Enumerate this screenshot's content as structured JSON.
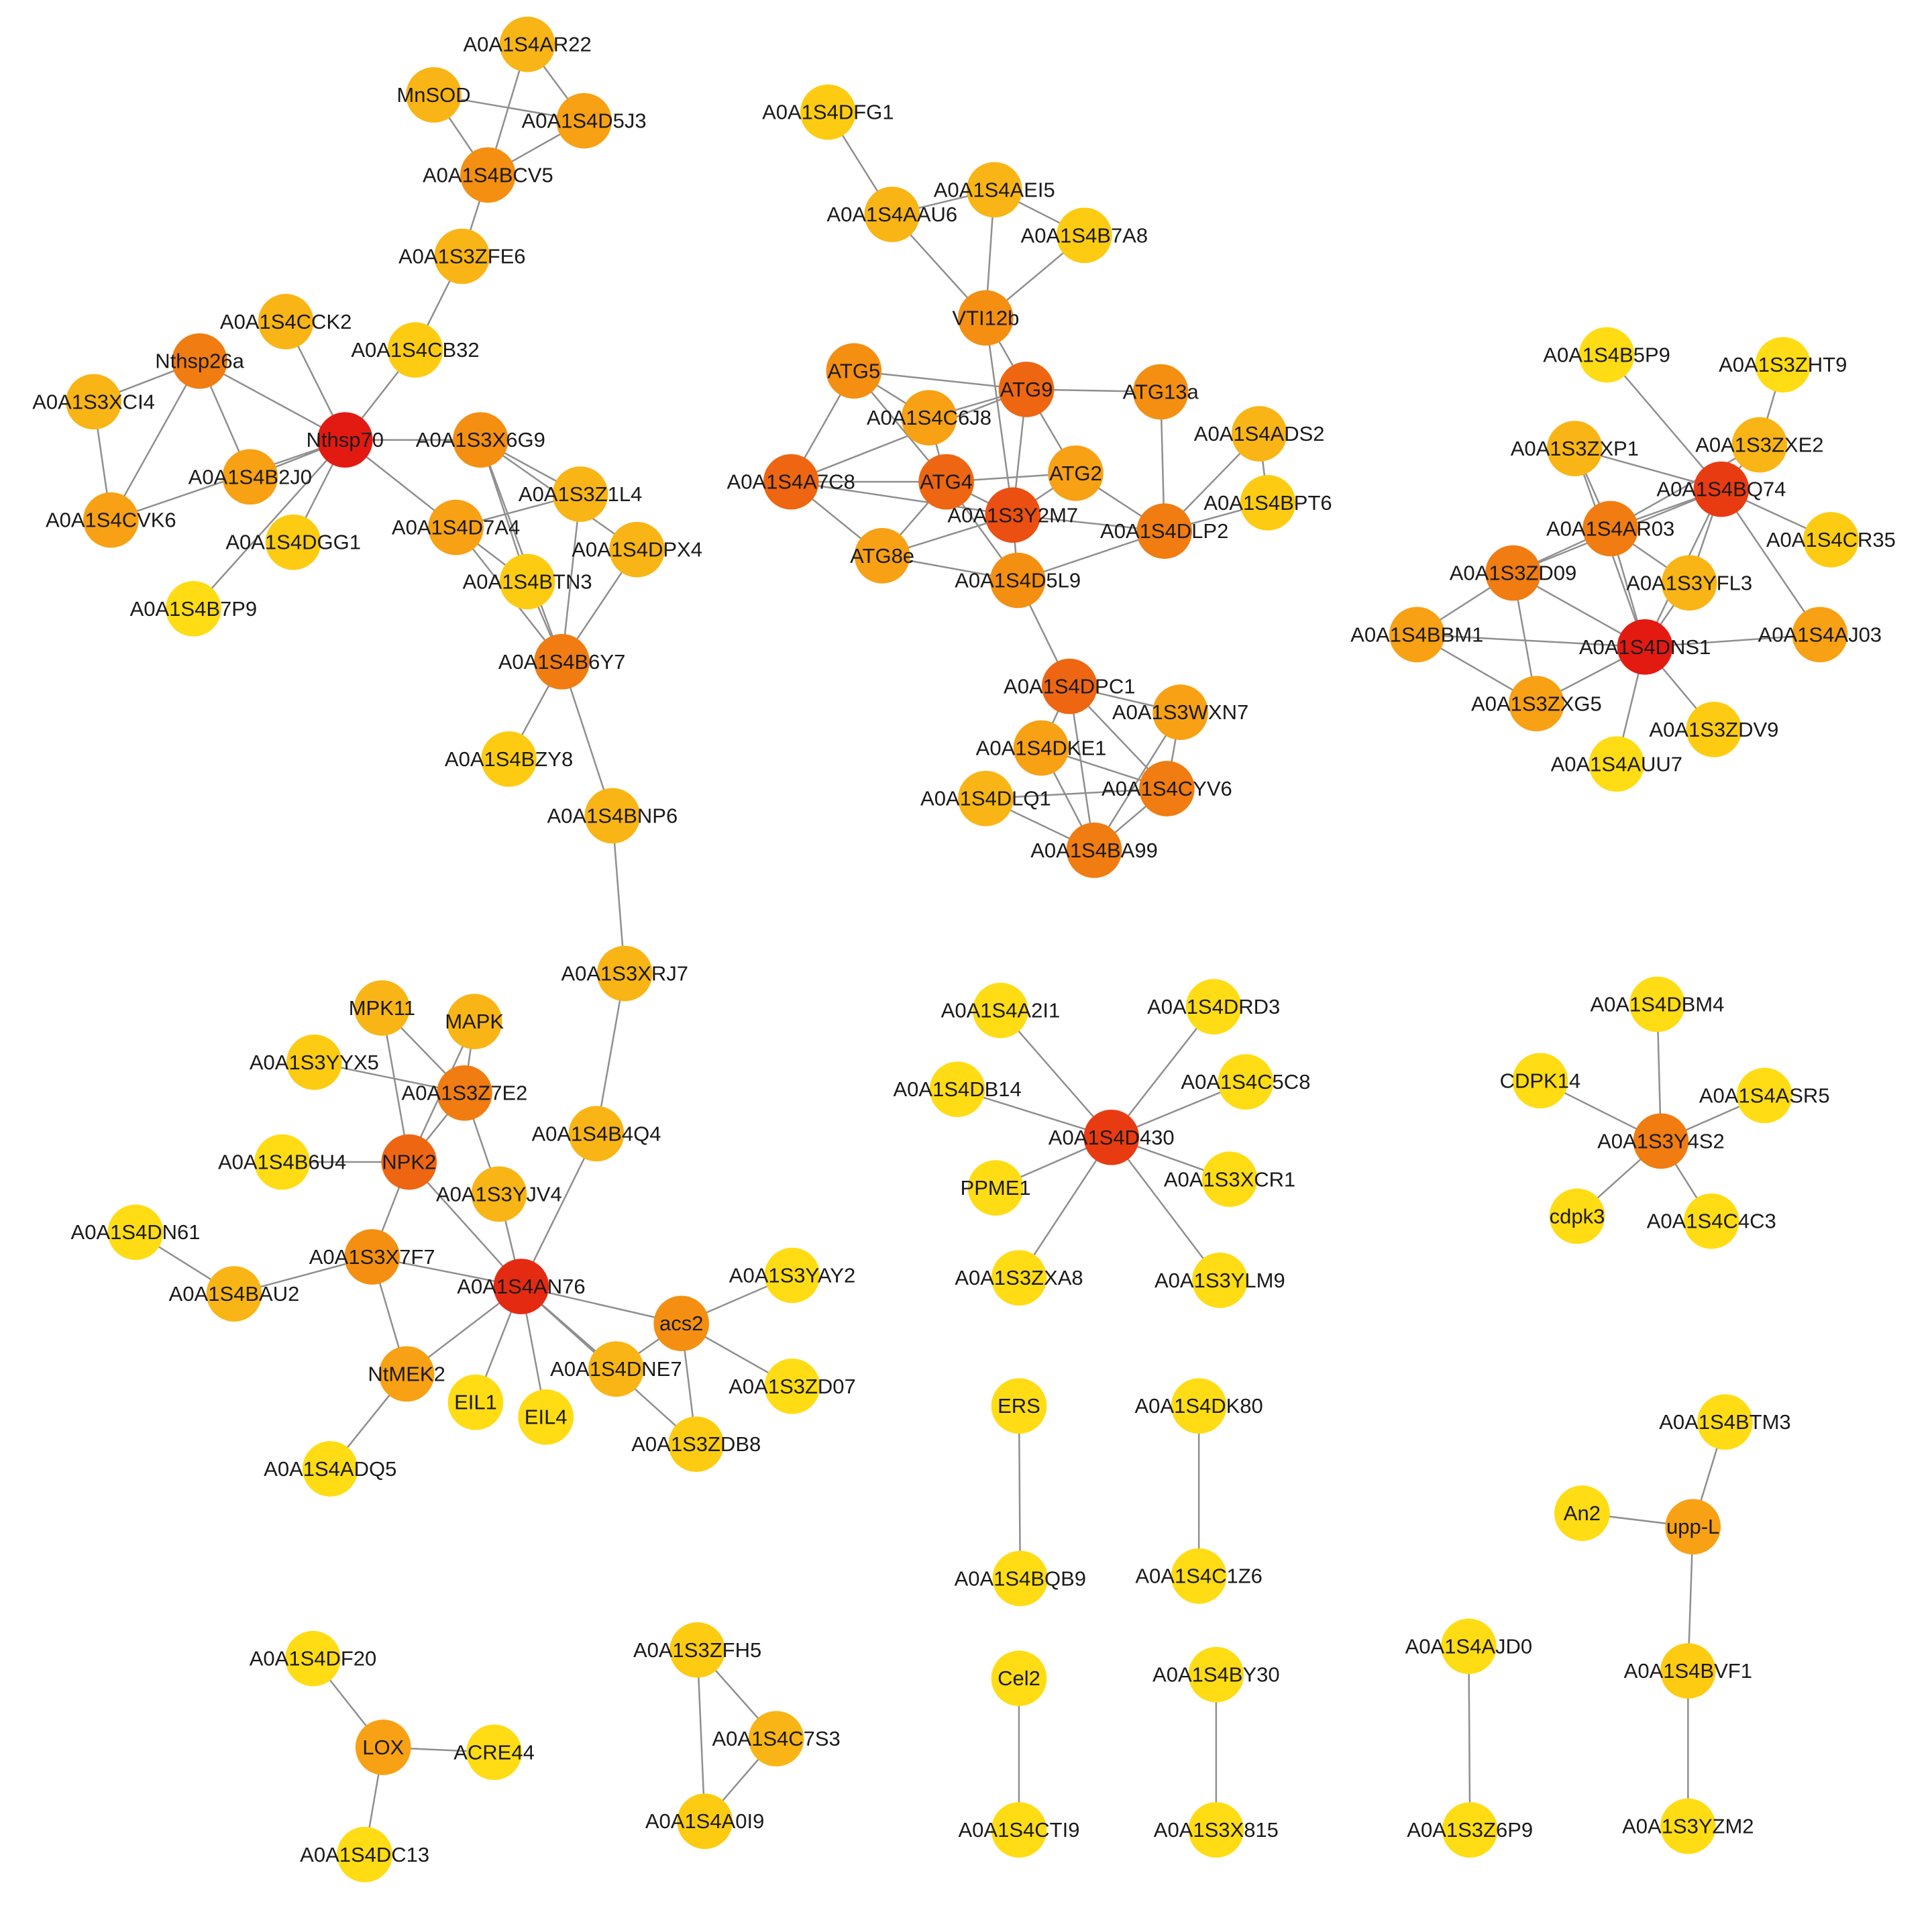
{
  "colors": {
    "background": "#ffffff",
    "edge": "#8f8f8f",
    "label": "#1a1a1a",
    "degree_scale": {
      "1": "#ffdc14",
      "2": "#fdcc12",
      "3": "#f9b515",
      "4": "#f8a114",
      "5": "#f48f12",
      "6": "#f07c12",
      "7": "#ee6612",
      "8": "#eb4f12",
      "9": "#e93b12",
      "10": "#e52a12",
      "11": "#e31a12"
    }
  },
  "nodes": [
    {
      "id": "A0A1S4AR22",
      "level": 3
    },
    {
      "id": "MnSOD",
      "level": 3
    },
    {
      "id": "A0A1S4D5J3",
      "level": 4
    },
    {
      "id": "A0A1S4BCV5",
      "level": 5
    },
    {
      "id": "A0A1S3ZFE6",
      "level": 3
    },
    {
      "id": "A0A1S4CCK2",
      "level": 3
    },
    {
      "id": "Nthsp26a",
      "level": 6
    },
    {
      "id": "A0A1S4CB32",
      "level": 2
    },
    {
      "id": "A0A1S3XCI4",
      "level": 3
    },
    {
      "id": "Nthsp70",
      "level": 11
    },
    {
      "id": "A0A1S3X6G9",
      "level": 5
    },
    {
      "id": "A0A1S4B2J0",
      "level": 4
    },
    {
      "id": "A0A1S3Z1L4",
      "level": 3
    },
    {
      "id": "A0A1S4CVK6",
      "level": 4
    },
    {
      "id": "A0A1S4D7A4",
      "level": 4
    },
    {
      "id": "A0A1S4DGG1",
      "level": 2
    },
    {
      "id": "A0A1S4DPX4",
      "level": 3
    },
    {
      "id": "A0A1S4BTN3",
      "level": 2
    },
    {
      "id": "A0A1S4B7P9",
      "level": 1
    },
    {
      "id": "A0A1S4B6Y7",
      "level": 6
    },
    {
      "id": "A0A1S4BZY8",
      "level": 2
    },
    {
      "id": "A0A1S4BNP6",
      "level": 3
    },
    {
      "id": "A0A1S3XRJ7",
      "level": 3
    },
    {
      "id": "A0A1S4DFG1",
      "level": 2
    },
    {
      "id": "A0A1S4AEI5",
      "level": 3
    },
    {
      "id": "A0A1S4AAU6",
      "level": 3
    },
    {
      "id": "A0A1S4B7A8",
      "level": 2
    },
    {
      "id": "VTI12b",
      "level": 5
    },
    {
      "id": "ATG5",
      "level": 5
    },
    {
      "id": "ATG9",
      "level": 7
    },
    {
      "id": "ATG13a",
      "level": 5
    },
    {
      "id": "A0A1S4C6J8",
      "level": 4
    },
    {
      "id": "A0A1S4ADS2",
      "level": 3
    },
    {
      "id": "A0A1S4A7C8",
      "level": 7
    },
    {
      "id": "ATG4",
      "level": 7
    },
    {
      "id": "ATG2",
      "level": 4
    },
    {
      "id": "A0A1S3Y2M7",
      "level": 8
    },
    {
      "id": "A0A1S4BPT6",
      "level": 2
    },
    {
      "id": "A0A1S4DLP2",
      "level": 6
    },
    {
      "id": "ATG8e",
      "level": 4
    },
    {
      "id": "A0A1S4D5L9",
      "level": 5
    },
    {
      "id": "A0A1S4DPC1",
      "level": 7
    },
    {
      "id": "A0A1S3WXN7",
      "level": 4
    },
    {
      "id": "A0A1S4DKE1",
      "level": 4
    },
    {
      "id": "A0A1S4CYV6",
      "level": 6
    },
    {
      "id": "A0A1S4DLQ1",
      "level": 3
    },
    {
      "id": "A0A1S4BA99",
      "level": 6
    },
    {
      "id": "A0A1S4B5P9",
      "level": 1
    },
    {
      "id": "A0A1S3ZHT9",
      "level": 1
    },
    {
      "id": "A0A1S3ZXP1",
      "level": 3
    },
    {
      "id": "A0A1S3ZXE2",
      "level": 3
    },
    {
      "id": "A0A1S4BQ74",
      "level": 9
    },
    {
      "id": "A0A1S4AR03",
      "level": 6
    },
    {
      "id": "A0A1S4CR35",
      "level": 2
    },
    {
      "id": "A0A1S3ZD09",
      "level": 6
    },
    {
      "id": "A0A1S3YFL3",
      "level": 3
    },
    {
      "id": "A0A1S4BBM1",
      "level": 4
    },
    {
      "id": "A0A1S4DNS1",
      "level": 11
    },
    {
      "id": "A0A1S4AJ03",
      "level": 4
    },
    {
      "id": "A0A1S3ZXG5",
      "level": 4
    },
    {
      "id": "A0A1S3ZDV9",
      "level": 2
    },
    {
      "id": "A0A1S4AUU7",
      "level": 1
    },
    {
      "id": "MPK11",
      "level": 3
    },
    {
      "id": "MAPK",
      "level": 3
    },
    {
      "id": "A0A1S3YYX5",
      "level": 2
    },
    {
      "id": "A0A1S3Z7E2",
      "level": 6
    },
    {
      "id": "A0A1S4B4Q4",
      "level": 3
    },
    {
      "id": "A0A1S4B6U4",
      "level": 1
    },
    {
      "id": "NPK2",
      "level": 7
    },
    {
      "id": "A0A1S3YJV4",
      "level": 3
    },
    {
      "id": "A0A1S4DN61",
      "level": 1
    },
    {
      "id": "A0A1S3X7F7",
      "level": 5
    },
    {
      "id": "A0A1S4AN76",
      "level": 10
    },
    {
      "id": "A0A1S4BAU2",
      "level": 3
    },
    {
      "id": "A0A1S3YAY2",
      "level": 1
    },
    {
      "id": "acs2",
      "level": 5
    },
    {
      "id": "NtMEK2",
      "level": 4
    },
    {
      "id": "A0A1S4DNE7",
      "level": 3
    },
    {
      "id": "EIL1",
      "level": 1
    },
    {
      "id": "EIL4",
      "level": 1
    },
    {
      "id": "A0A1S3ZD07",
      "level": 1
    },
    {
      "id": "A0A1S3ZDB8",
      "level": 2
    },
    {
      "id": "A0A1S4ADQ5",
      "level": 1
    },
    {
      "id": "A0A1S4A2I1",
      "level": 1
    },
    {
      "id": "A0A1S4DRD3",
      "level": 1
    },
    {
      "id": "A0A1S4DB14",
      "level": 1
    },
    {
      "id": "A0A1S4C5C8",
      "level": 1
    },
    {
      "id": "A0A1S4D430",
      "level": 9
    },
    {
      "id": "PPME1",
      "level": 1
    },
    {
      "id": "A0A1S3XCR1",
      "level": 1
    },
    {
      "id": "A0A1S3ZXA8",
      "level": 1
    },
    {
      "id": "A0A1S3YLM9",
      "level": 1
    },
    {
      "id": "A0A1S4DBM4",
      "level": 1
    },
    {
      "id": "CDPK14",
      "level": 1
    },
    {
      "id": "A0A1S4ASR5",
      "level": 1
    },
    {
      "id": "A0A1S3Y4S2",
      "level": 6
    },
    {
      "id": "cdpk3",
      "level": 1
    },
    {
      "id": "A0A1S4C4C3",
      "level": 1
    },
    {
      "id": "ERS",
      "level": 1
    },
    {
      "id": "A0A1S4DK80",
      "level": 1
    },
    {
      "id": "A0A1S4BQB9",
      "level": 1
    },
    {
      "id": "A0A1S4C1Z6",
      "level": 1
    },
    {
      "id": "A0A1S4BTM3",
      "level": 1
    },
    {
      "id": "An2",
      "level": 1
    },
    {
      "id": "upp-L",
      "level": 4
    },
    {
      "id": "A0A1S4BVF1",
      "level": 2
    },
    {
      "id": "A0A1S3YZM2",
      "level": 1
    },
    {
      "id": "A0A1S4DF20",
      "level": 1
    },
    {
      "id": "LOX",
      "level": 4
    },
    {
      "id": "ACRE44",
      "level": 1
    },
    {
      "id": "A0A1S4DC13",
      "level": 1
    },
    {
      "id": "A0A1S3ZFH5",
      "level": 2
    },
    {
      "id": "A0A1S4C7S3",
      "level": 3
    },
    {
      "id": "A0A1S4A0I9",
      "level": 2
    },
    {
      "id": "Cel2",
      "level": 1
    },
    {
      "id": "A0A1S4BY30",
      "level": 1
    },
    {
      "id": "A0A1S4AJD0",
      "level": 1
    },
    {
      "id": "A0A1S4CTI9",
      "level": 1
    },
    {
      "id": "A0A1S3X815",
      "level": 1
    },
    {
      "id": "A0A1S3Z6P9",
      "level": 1
    }
  ],
  "edges": [
    [
      "A0A1S4AR22",
      "A0A1S4D5J3"
    ],
    [
      "A0A1S4AR22",
      "A0A1S4BCV5"
    ],
    [
      "MnSOD",
      "A0A1S4D5J3"
    ],
    [
      "MnSOD",
      "A0A1S4BCV5"
    ],
    [
      "A0A1S4D5J3",
      "A0A1S4BCV5"
    ],
    [
      "A0A1S4BCV5",
      "A0A1S3ZFE6"
    ],
    [
      "A0A1S3ZFE6",
      "A0A1S4CB32"
    ],
    [
      "A0A1S4CB32",
      "Nthsp70"
    ],
    [
      "A0A1S4CCK2",
      "Nthsp70"
    ],
    [
      "Nthsp26a",
      "Nthsp70"
    ],
    [
      "Nthsp26a",
      "A0A1S3XCI4"
    ],
    [
      "Nthsp26a",
      "A0A1S4CVK6"
    ],
    [
      "Nthsp26a",
      "A0A1S4B2J0"
    ],
    [
      "A0A1S3XCI4",
      "A0A1S4CVK6"
    ],
    [
      "A0A1S4CVK6",
      "Nthsp70"
    ],
    [
      "A0A1S4B2J0",
      "Nthsp70"
    ],
    [
      "A0A1S4DGG1",
      "Nthsp70"
    ],
    [
      "A0A1S4B7P9",
      "Nthsp70"
    ],
    [
      "Nthsp70",
      "A0A1S3X6G9"
    ],
    [
      "Nthsp70",
      "A0A1S4D7A4"
    ],
    [
      "A0A1S3X6G9",
      "A0A1S3Z1L4"
    ],
    [
      "A0A1S3X6G9",
      "A0A1S4DPX4"
    ],
    [
      "A0A1S3X6G9",
      "A0A1S4BTN3"
    ],
    [
      "A0A1S3X6G9",
      "A0A1S4B6Y7"
    ],
    [
      "A0A1S4D7A4",
      "A0A1S4BTN3"
    ],
    [
      "A0A1S4D7A4",
      "A0A1S4B6Y7"
    ],
    [
      "A0A1S4D7A4",
      "A0A1S3Z1L4"
    ],
    [
      "A0A1S3Z1L4",
      "A0A1S4B6Y7"
    ],
    [
      "A0A1S4DPX4",
      "A0A1S4B6Y7"
    ],
    [
      "A0A1S4BTN3",
      "A0A1S4B6Y7"
    ],
    [
      "A0A1S4B6Y7",
      "A0A1S4BZY8"
    ],
    [
      "A0A1S4B6Y7",
      "A0A1S4BNP6"
    ],
    [
      "A0A1S4BNP6",
      "A0A1S3XRJ7"
    ],
    [
      "A0A1S3XRJ7",
      "A0A1S4B4Q4"
    ],
    [
      "A0A1S4B4Q4",
      "A0A1S4AN76"
    ],
    [
      "A0A1S4DFG1",
      "A0A1S4AAU6"
    ],
    [
      "A0A1S4AAU6",
      "A0A1S4AEI5"
    ],
    [
      "A0A1S4AAU6",
      "VTI12b"
    ],
    [
      "A0A1S4AEI5",
      "A0A1S4B7A8"
    ],
    [
      "A0A1S4AEI5",
      "VTI12b"
    ],
    [
      "A0A1S4B7A8",
      "VTI12b"
    ],
    [
      "VTI12b",
      "ATG9"
    ],
    [
      "VTI12b",
      "A0A1S3Y2M7"
    ],
    [
      "ATG5",
      "ATG9"
    ],
    [
      "ATG5",
      "A0A1S4C6J8"
    ],
    [
      "ATG5",
      "A0A1S4A7C8"
    ],
    [
      "ATG5",
      "ATG4"
    ],
    [
      "ATG9",
      "A0A1S4C6J8"
    ],
    [
      "ATG9",
      "ATG13a"
    ],
    [
      "ATG9",
      "A0A1S3Y2M7"
    ],
    [
      "ATG9",
      "ATG2"
    ],
    [
      "ATG9",
      "A0A1S4A7C8"
    ],
    [
      "A0A1S4C6J8",
      "ATG4"
    ],
    [
      "A0A1S4A7C8",
      "ATG4"
    ],
    [
      "A0A1S4A7C8",
      "A0A1S3Y2M7"
    ],
    [
      "A0A1S4A7C8",
      "ATG8e"
    ],
    [
      "ATG4",
      "A0A1S3Y2M7"
    ],
    [
      "ATG4",
      "ATG2"
    ],
    [
      "ATG4",
      "ATG8e"
    ],
    [
      "ATG4",
      "A0A1S4D5L9"
    ],
    [
      "ATG2",
      "A0A1S3Y2M7"
    ],
    [
      "ATG2",
      "A0A1S4DLP2"
    ],
    [
      "A0A1S3Y2M7",
      "A0A1S4D5L9"
    ],
    [
      "A0A1S3Y2M7",
      "ATG8e"
    ],
    [
      "A0A1S3Y2M7",
      "A0A1S4DLP2"
    ],
    [
      "ATG13a",
      "A0A1S4DLP2"
    ],
    [
      "A0A1S4ADS2",
      "A0A1S4DLP2"
    ],
    [
      "A0A1S4ADS2",
      "A0A1S4BPT6"
    ],
    [
      "A0A1S4DLP2",
      "A0A1S4BPT6"
    ],
    [
      "A0A1S4DLP2",
      "A0A1S4D5L9"
    ],
    [
      "ATG8e",
      "A0A1S4D5L9"
    ],
    [
      "A0A1S4D5L9",
      "A0A1S4DPC1"
    ],
    [
      "A0A1S4DPC1",
      "A0A1S3WXN7"
    ],
    [
      "A0A1S4DPC1",
      "A0A1S4DKE1"
    ],
    [
      "A0A1S4DPC1",
      "A0A1S4CYV6"
    ],
    [
      "A0A1S4DPC1",
      "A0A1S4BA99"
    ],
    [
      "A0A1S3WXN7",
      "A0A1S4CYV6"
    ],
    [
      "A0A1S3WXN7",
      "A0A1S4BA99"
    ],
    [
      "A0A1S4DKE1",
      "A0A1S4CYV6"
    ],
    [
      "A0A1S4DKE1",
      "A0A1S4BA99"
    ],
    [
      "A0A1S4DLQ1",
      "A0A1S4BA99"
    ],
    [
      "A0A1S4CYV6",
      "A0A1S4BA99"
    ],
    [
      "A0A1S4DLQ1",
      "A0A1S4CYV6"
    ],
    [
      "A0A1S4B5P9",
      "A0A1S4BQ74"
    ],
    [
      "A0A1S3ZHT9",
      "A0A1S3ZXE2"
    ],
    [
      "A0A1S3ZXE2",
      "A0A1S4BQ74"
    ],
    [
      "A0A1S3ZXE2",
      "A0A1S4AR03"
    ],
    [
      "A0A1S3ZXP1",
      "A0A1S4BQ74"
    ],
    [
      "A0A1S3ZXP1",
      "A0A1S4AR03"
    ],
    [
      "A0A1S3ZXP1",
      "A0A1S4DNS1"
    ],
    [
      "A0A1S4BQ74",
      "A0A1S4AR03"
    ],
    [
      "A0A1S4BQ74",
      "A0A1S4CR35"
    ],
    [
      "A0A1S4BQ74",
      "A0A1S3YFL3"
    ],
    [
      "A0A1S4BQ74",
      "A0A1S4DNS1"
    ],
    [
      "A0A1S4BQ74",
      "A0A1S4AJ03"
    ],
    [
      "A0A1S4BQ74",
      "A0A1S3ZD09"
    ],
    [
      "A0A1S4AR03",
      "A0A1S3ZD09"
    ],
    [
      "A0A1S4AR03",
      "A0A1S3YFL3"
    ],
    [
      "A0A1S4AR03",
      "A0A1S4DNS1"
    ],
    [
      "A0A1S3ZD09",
      "A0A1S4BBM1"
    ],
    [
      "A0A1S3ZD09",
      "A0A1S4DNS1"
    ],
    [
      "A0A1S3ZD09",
      "A0A1S3ZXG5"
    ],
    [
      "A0A1S3YFL3",
      "A0A1S4DNS1"
    ],
    [
      "A0A1S4BBM1",
      "A0A1S4DNS1"
    ],
    [
      "A0A1S4BBM1",
      "A0A1S3ZXG5"
    ],
    [
      "A0A1S4DNS1",
      "A0A1S4AJ03"
    ],
    [
      "A0A1S4DNS1",
      "A0A1S3ZXG5"
    ],
    [
      "A0A1S4DNS1",
      "A0A1S3ZDV9"
    ],
    [
      "A0A1S4DNS1",
      "A0A1S4AUU7"
    ],
    [
      "MPK11",
      "A0A1S3Z7E2"
    ],
    [
      "MPK11",
      "NPK2"
    ],
    [
      "MAPK",
      "A0A1S3Z7E2"
    ],
    [
      "MAPK",
      "NPK2"
    ],
    [
      "A0A1S3YYX5",
      "A0A1S3Z7E2"
    ],
    [
      "A0A1S3Z7E2",
      "NPK2"
    ],
    [
      "A0A1S3Z7E2",
      "A0A1S3YJV4"
    ],
    [
      "A0A1S4B6U4",
      "NPK2"
    ],
    [
      "NPK2",
      "A0A1S3X7F7"
    ],
    [
      "NPK2",
      "A0A1S4AN76"
    ],
    [
      "A0A1S3YJV4",
      "A0A1S4AN76"
    ],
    [
      "A0A1S4DN61",
      "A0A1S4BAU2"
    ],
    [
      "A0A1S4BAU2",
      "A0A1S3X7F7"
    ],
    [
      "A0A1S3X7F7",
      "A0A1S4AN76"
    ],
    [
      "A0A1S3X7F7",
      "NtMEK2"
    ],
    [
      "A0A1S4AN76",
      "NtMEK2"
    ],
    [
      "A0A1S4AN76",
      "EIL1"
    ],
    [
      "A0A1S4AN76",
      "EIL4"
    ],
    [
      "A0A1S4AN76",
      "A0A1S4DNE7"
    ],
    [
      "A0A1S4AN76",
      "acs2"
    ],
    [
      "A0A1S4AN76",
      "A0A1S3ZDB8"
    ],
    [
      "acs2",
      "A0A1S3YAY2"
    ],
    [
      "acs2",
      "A0A1S3ZD07"
    ],
    [
      "acs2",
      "A0A1S3ZDB8"
    ],
    [
      "acs2",
      "A0A1S4DNE7"
    ],
    [
      "NtMEK2",
      "A0A1S4ADQ5"
    ],
    [
      "A0A1S4D430",
      "A0A1S4A2I1"
    ],
    [
      "A0A1S4D430",
      "A0A1S4DRD3"
    ],
    [
      "A0A1S4D430",
      "A0A1S4DB14"
    ],
    [
      "A0A1S4D430",
      "A0A1S4C5C8"
    ],
    [
      "A0A1S4D430",
      "PPME1"
    ],
    [
      "A0A1S4D430",
      "A0A1S3XCR1"
    ],
    [
      "A0A1S4D430",
      "A0A1S3ZXA8"
    ],
    [
      "A0A1S4D430",
      "A0A1S3YLM9"
    ],
    [
      "A0A1S3Y4S2",
      "A0A1S4DBM4"
    ],
    [
      "A0A1S3Y4S2",
      "CDPK14"
    ],
    [
      "A0A1S3Y4S2",
      "A0A1S4ASR5"
    ],
    [
      "A0A1S3Y4S2",
      "cdpk3"
    ],
    [
      "A0A1S3Y4S2",
      "A0A1S4C4C3"
    ],
    [
      "ERS",
      "A0A1S4BQB9"
    ],
    [
      "A0A1S4DK80",
      "A0A1S4C1Z6"
    ],
    [
      "A0A1S4BTM3",
      "upp-L"
    ],
    [
      "An2",
      "upp-L"
    ],
    [
      "upp-L",
      "A0A1S4BVF1"
    ],
    [
      "A0A1S4BVF1",
      "A0A1S3YZM2"
    ],
    [
      "A0A1S4DF20",
      "LOX"
    ],
    [
      "LOX",
      "ACRE44"
    ],
    [
      "LOX",
      "A0A1S4DC13"
    ],
    [
      "A0A1S3ZFH5",
      "A0A1S4C7S3"
    ],
    [
      "A0A1S3ZFH5",
      "A0A1S4A0I9"
    ],
    [
      "A0A1S4C7S3",
      "A0A1S4A0I9"
    ],
    [
      "Cel2",
      "A0A1S4CTI9"
    ],
    [
      "A0A1S4BY30",
      "A0A1S3X815"
    ],
    [
      "A0A1S4AJD0",
      "A0A1S3Z6P9"
    ]
  ]
}
